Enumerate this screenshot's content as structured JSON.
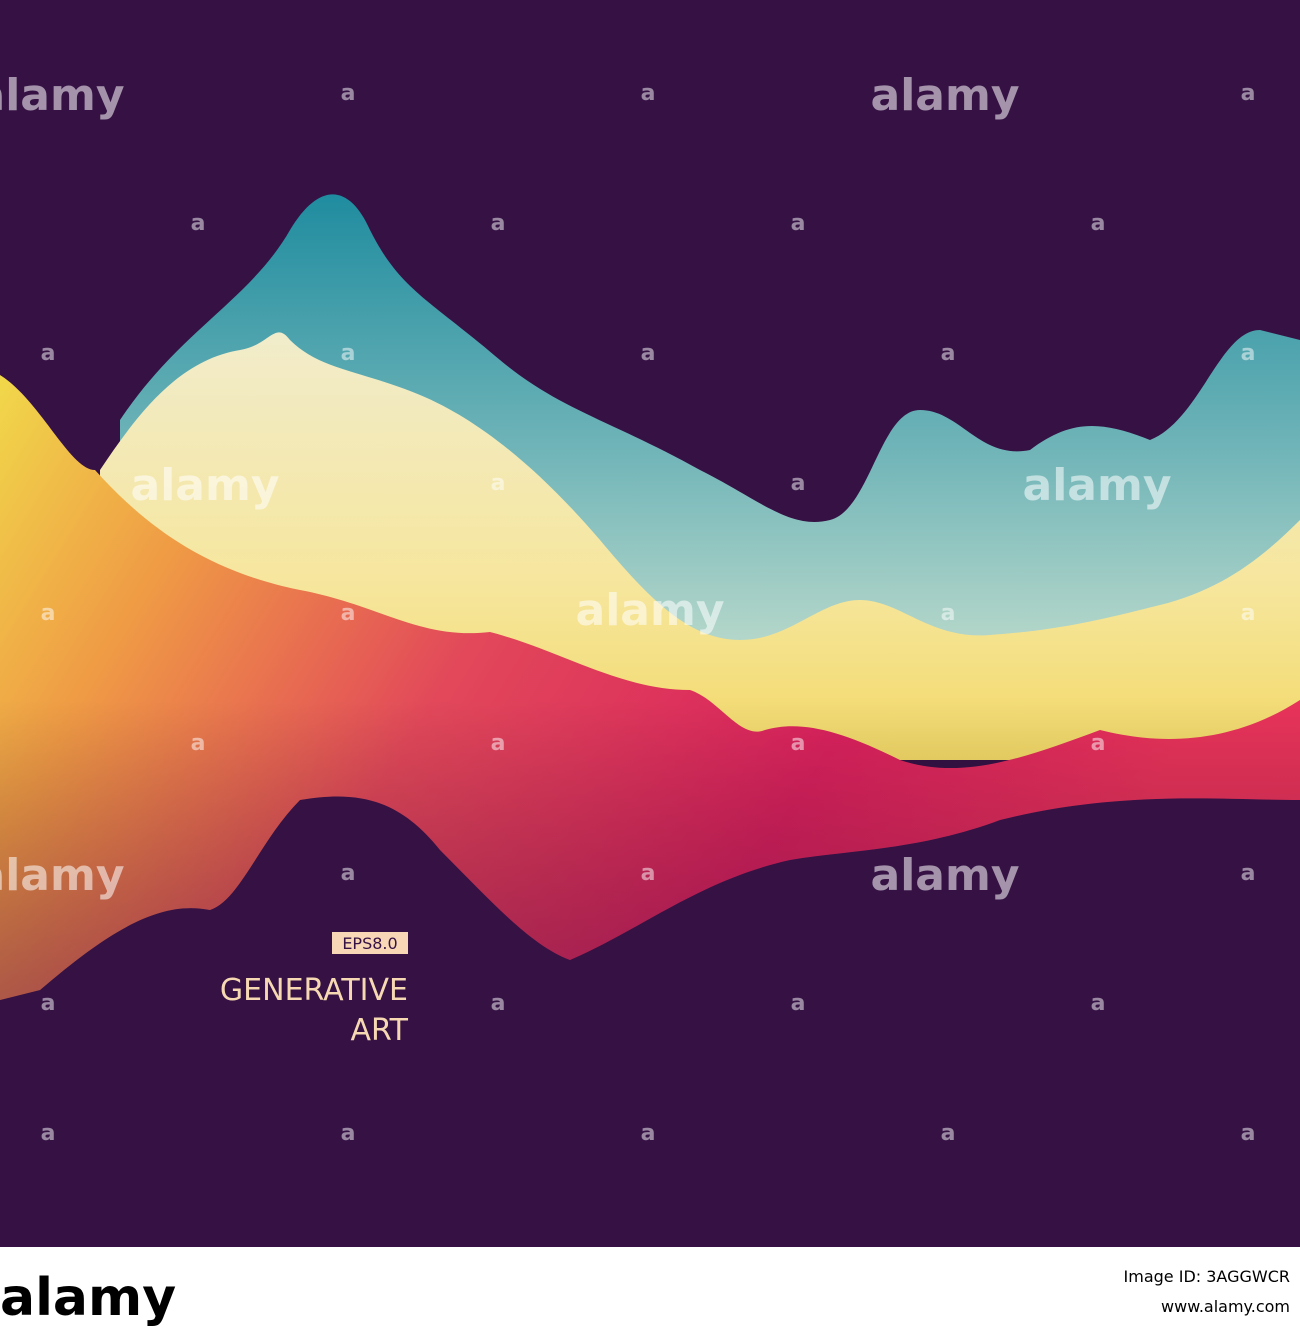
{
  "image": {
    "badge": "EPS8.0",
    "title_lines": [
      "GENERATIVE",
      "ART"
    ],
    "watermark": "alamy",
    "watermark_small": "a"
  },
  "footer": {
    "logo": "alamy",
    "image_id": "Image ID: 3AGGWCR",
    "url": "www.alamy.com"
  }
}
